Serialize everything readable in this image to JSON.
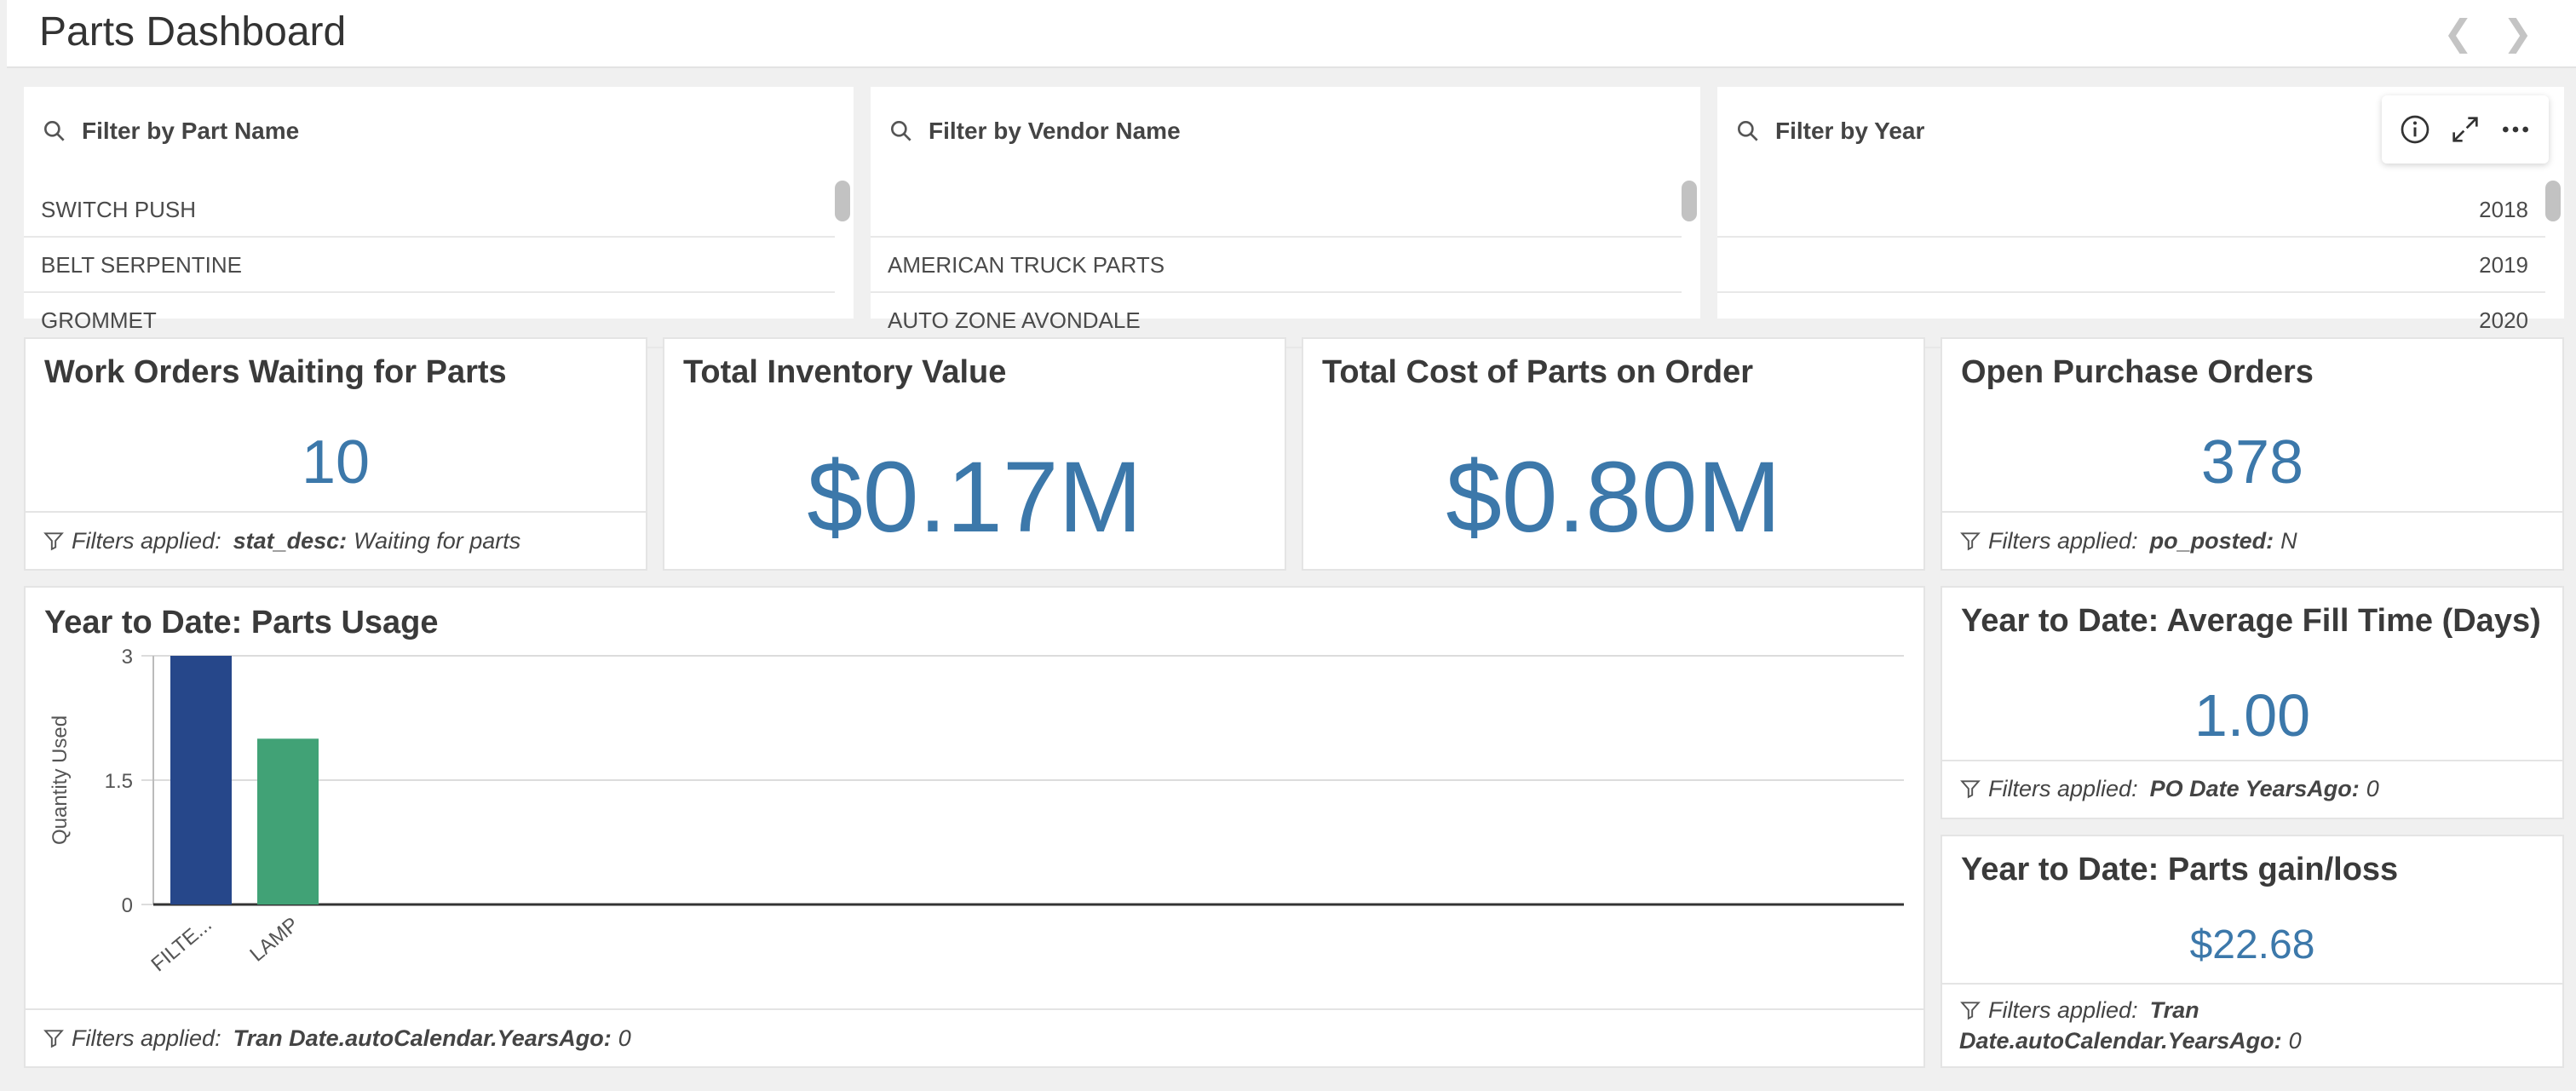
{
  "header": {
    "title": "Parts Dashboard",
    "prev_icon": "chevron-left-icon",
    "next_icon": "chevron-right-icon"
  },
  "filters": [
    {
      "label": "Filter by Part Name",
      "items": [
        "SWITCH PUSH",
        "BELT SERPENTINE",
        "GROMMET"
      ]
    },
    {
      "label": "Filter by Vendor Name",
      "items": [
        "",
        "AMERICAN TRUCK PARTS",
        "AUTO ZONE AVONDALE"
      ]
    },
    {
      "label": "Filter by Year",
      "items": [
        "2018",
        "2019",
        "2020"
      ]
    }
  ],
  "toolbar": {
    "icons": [
      "info-icon",
      "expand-icon",
      "more-options-icon"
    ]
  },
  "filters_applied_label": "Filters applied:",
  "kpis": [
    {
      "title": "Work Orders Waiting for Parts",
      "value": "10",
      "filter_key": "stat_desc:",
      "filter_value": "Waiting for parts"
    },
    {
      "title": "Total Inventory Value",
      "value": "$0.17M"
    },
    {
      "title": "Total Cost of Parts on Order",
      "value": "$0.80M"
    },
    {
      "title": "Open Purchase Orders",
      "value": "378",
      "filter_key": "po_posted:",
      "filter_value": "N"
    }
  ],
  "usage_chart": {
    "title": "Year to Date: Parts Usage",
    "filter_key": "Tran Date.autoCalendar.YearsAgo:",
    "filter_value": "0"
  },
  "chart_data": {
    "type": "bar",
    "title": "Year to Date: Parts Usage",
    "categories": [
      "FILTE...",
      "LAMP"
    ],
    "values": [
      3,
      2
    ],
    "colors": [
      "#26478a",
      "#41a276"
    ],
    "xlabel": "",
    "ylabel": "Quantity Used",
    "ylim": [
      0,
      3
    ],
    "yticks": [
      "0",
      "1.5",
      "3"
    ],
    "grid": true
  },
  "fill_time": {
    "title": "Year to Date: Average Fill Time (Days)",
    "value": "1.00",
    "filter_key": "PO Date YearsAgo:",
    "filter_value": "0"
  },
  "gain_loss": {
    "title": "Year to Date: Parts gain/loss",
    "value": "$22.68",
    "filter_key": "Tran Date.autoCalendar.YearsAgo:",
    "filter_value": "0"
  },
  "colors": {
    "accent_value": "#3c78aa",
    "bar_series_1": "#26478a",
    "bar_series_2": "#41a276"
  }
}
